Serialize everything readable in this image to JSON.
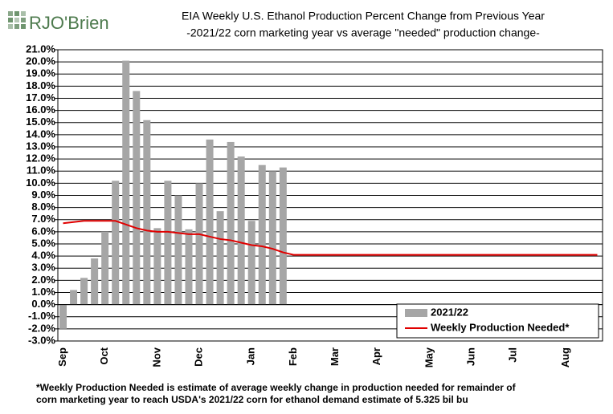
{
  "logo": "RJO'Brien",
  "chart_data": {
    "type": "bar_line",
    "title": "EIA Weekly U.S. Ethanol Production Percent Change from Previous Year",
    "subtitle": "-2021/22 corn marketing year vs average \"needed\" production change-",
    "categories": [
      "Sep",
      null,
      null,
      null,
      "Oct",
      null,
      null,
      null,
      null,
      "Nov",
      null,
      null,
      null,
      "Dec",
      null,
      null,
      null,
      null,
      "Jan",
      null,
      null,
      null,
      "Feb",
      null,
      null,
      null,
      "Mar",
      null,
      null,
      null,
      "Apr",
      null,
      null,
      null,
      null,
      "May",
      null,
      null,
      null,
      "Jun",
      null,
      null,
      null,
      "Jul",
      null,
      null,
      null,
      null,
      "Aug",
      null,
      null,
      null
    ],
    "series": [
      {
        "name": "2021/22",
        "kind": "bar",
        "color": "#a6a6a6",
        "values": [
          -2.0,
          1.2,
          2.2,
          3.8,
          6.0,
          10.2,
          20.1,
          17.6,
          15.2,
          6.3,
          10.2,
          9.0,
          6.2,
          10.0,
          13.6,
          7.7,
          13.4,
          12.2,
          6.9,
          11.5,
          11.0,
          11.3,
          null,
          null,
          null,
          null,
          null,
          null,
          null,
          null,
          null,
          null,
          null,
          null,
          null,
          null,
          null,
          null,
          null,
          null,
          null,
          null,
          null,
          null,
          null,
          null,
          null,
          null,
          null,
          null,
          null,
          null
        ]
      },
      {
        "name": "Weekly Production Needed*",
        "kind": "line",
        "color": "#e00000",
        "values": [
          6.7,
          6.8,
          6.9,
          6.9,
          6.9,
          6.9,
          6.6,
          6.3,
          6.1,
          6.0,
          6.0,
          5.9,
          5.8,
          5.8,
          5.6,
          5.4,
          5.3,
          5.1,
          4.9,
          4.8,
          4.6,
          4.3,
          4.1,
          4.1,
          4.1,
          4.1,
          4.1,
          4.1,
          4.1,
          4.1,
          4.1,
          4.1,
          4.1,
          4.1,
          4.1,
          4.1,
          4.1,
          4.1,
          4.1,
          4.1,
          4.1,
          4.1,
          4.1,
          4.1,
          4.1,
          4.1,
          4.1,
          4.1,
          4.1,
          4.1,
          4.1,
          4.1
        ]
      }
    ],
    "ylim": [
      -3,
      21
    ],
    "yticks": [
      {
        "value": -3,
        "label": "-3.0%"
      },
      {
        "value": -2,
        "label": "-2.0%"
      },
      {
        "value": -1,
        "label": "-1.0%"
      },
      {
        "value": 0,
        "label": "0.0%"
      },
      {
        "value": 1,
        "label": "1.0%"
      },
      {
        "value": 2,
        "label": "2.0%"
      },
      {
        "value": 3,
        "label": "3.0%"
      },
      {
        "value": 4,
        "label": "4.0%"
      },
      {
        "value": 5,
        "label": "5.0%"
      },
      {
        "value": 6,
        "label": "6.0%"
      },
      {
        "value": 7,
        "label": "7.0%"
      },
      {
        "value": 8,
        "label": "8.0%"
      },
      {
        "value": 9,
        "label": "9.0%"
      },
      {
        "value": 10,
        "label": "10.0%"
      },
      {
        "value": 11,
        "label": "11.0%"
      },
      {
        "value": 12,
        "label": "12.0%"
      },
      {
        "value": 13,
        "label": "13.0%"
      },
      {
        "value": 14,
        "label": "14.0%"
      },
      {
        "value": 15,
        "label": "15.0%"
      },
      {
        "value": 16,
        "label": "16.0%"
      },
      {
        "value": 17,
        "label": "17.0%"
      },
      {
        "value": 18,
        "label": "18.0%"
      },
      {
        "value": 19,
        "label": "19.0%"
      },
      {
        "value": 20,
        "label": "20.0%"
      },
      {
        "value": 21,
        "label": "21.0%"
      }
    ],
    "grid": true,
    "legend": "bottom-right",
    "footnote": [
      "*Weekly Production Needed is estimate of average weekly change in production needed for remainder of",
      "corn marketing year to reach USDA's 2021/22 corn for ethanol demand estimate of 5.325 bil bu"
    ]
  }
}
